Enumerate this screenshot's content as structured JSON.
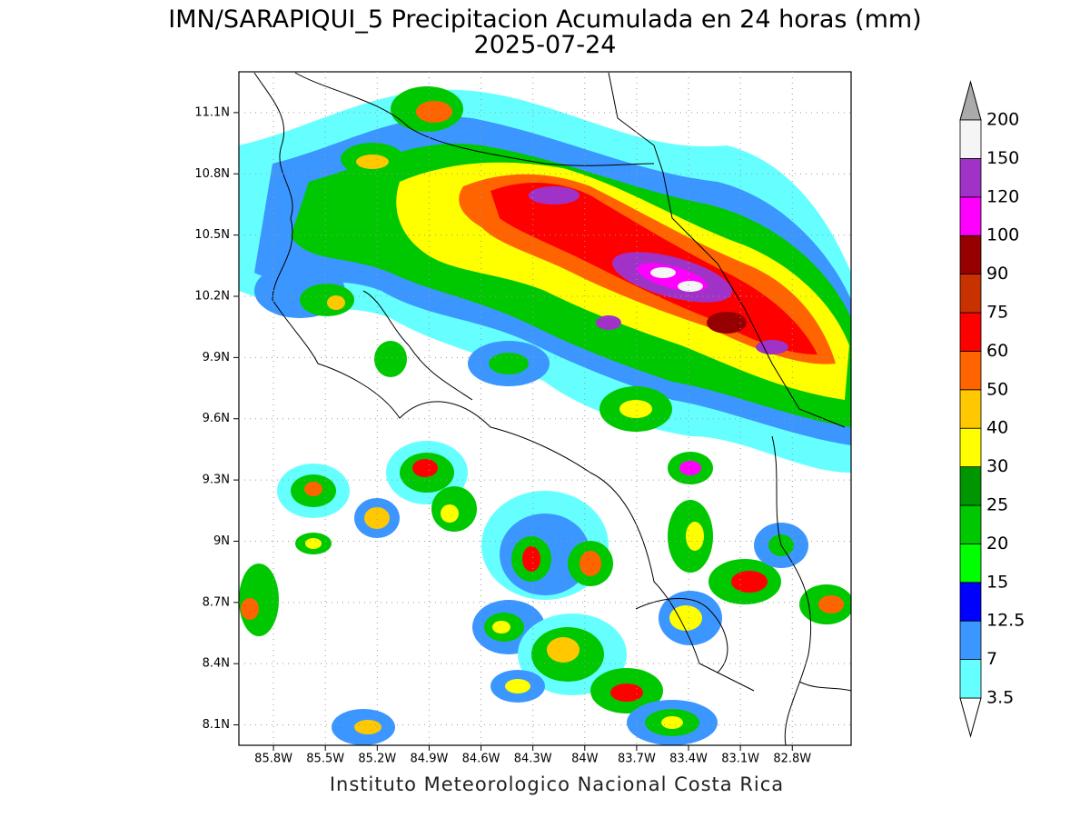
{
  "title": "IMN/SARAPIQUI_5 Precipitacion Acumulada en 24 horas (mm)",
  "subtitle": "2025-07-24",
  "footer": "Instituto Meteorologico Nacional Costa Rica",
  "map": {
    "xlim": [
      -86.0,
      -82.46
    ],
    "ylim": [
      8.0,
      11.3
    ],
    "grid": true,
    "lat_ticks": [
      {
        "value": 8.1,
        "label": "8.1N"
      },
      {
        "value": 8.4,
        "label": "8.4N"
      },
      {
        "value": 8.7,
        "label": "8.7N"
      },
      {
        "value": 9,
        "label": "9N"
      },
      {
        "value": 9.3,
        "label": "9.3N"
      },
      {
        "value": 9.6,
        "label": "9.6N"
      },
      {
        "value": 9.9,
        "label": "9.9N"
      },
      {
        "value": 10.2,
        "label": "10.2N"
      },
      {
        "value": 10.5,
        "label": "10.5N"
      },
      {
        "value": 10.8,
        "label": "10.8N"
      },
      {
        "value": 11.1,
        "label": "11.1N"
      }
    ],
    "lon_ticks": [
      {
        "value": -85.8,
        "label": "85.8W"
      },
      {
        "value": -85.5,
        "label": "85.5W"
      },
      {
        "value": -85.2,
        "label": "85.2W"
      },
      {
        "value": -84.9,
        "label": "84.9W"
      },
      {
        "value": -84.6,
        "label": "84.6W"
      },
      {
        "value": -84.3,
        "label": "84.3W"
      },
      {
        "value": -84,
        "label": "84W"
      },
      {
        "value": -83.7,
        "label": "83.7W"
      },
      {
        "value": -83.4,
        "label": "83.4W"
      },
      {
        "value": -83.1,
        "label": "83.1W"
      },
      {
        "value": -82.8,
        "label": "82.8W"
      }
    ]
  },
  "colorbar": {
    "levels": [
      3.5,
      7,
      12.5,
      15,
      20,
      25,
      30,
      40,
      50,
      60,
      75,
      90,
      100,
      120,
      150,
      200
    ],
    "colors": [
      "#66ffff",
      "#3c96ff",
      "#0000ff",
      "#00ff00",
      "#00c800",
      "#009600",
      "#ffff00",
      "#ffc800",
      "#ff6400",
      "#ff0000",
      "#c83200",
      "#960000",
      "#ff00ff",
      "#a032c8",
      "#f5f5f5"
    ],
    "under_color": "#ffffff",
    "over_color": "#aaaaaa"
  }
}
